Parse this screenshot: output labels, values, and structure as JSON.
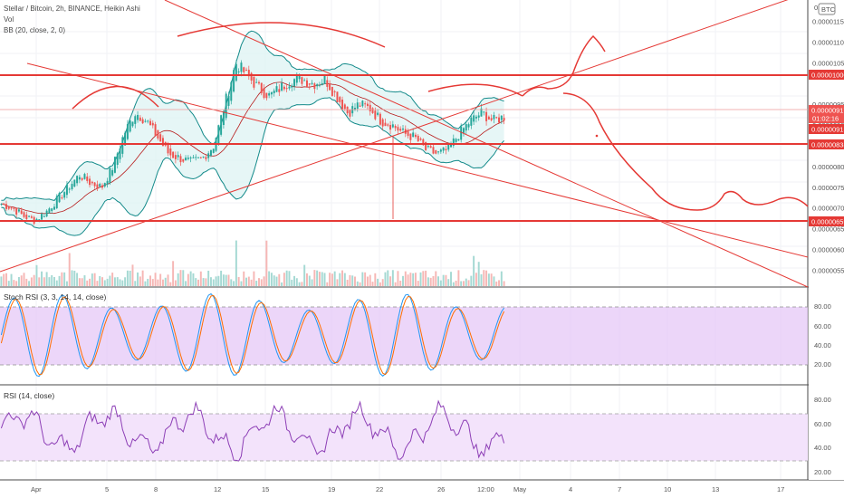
{
  "header": {
    "title": "Stellar / Bitcoin, 2h, BINANCE, Heikin Ashi",
    "vol_label": "Vol",
    "bb_label": "BB (20, close, 2, 0)"
  },
  "currency_badge": "BTC",
  "price_axis": {
    "ticks": [
      "0.00001150",
      "0.00001100",
      "0.00001050",
      "0.00000950",
      "0.00000900",
      "0.00000850",
      "0.00000800",
      "0.00000750",
      "0.00000700",
      "0.00000650",
      "0.00000600",
      "0.00000550"
    ],
    "top_partial": "0.000",
    "current_price": "0.00000917",
    "countdown": "01:02:16",
    "bb_basis": "0.00000915",
    "line_levels": [
      "0.00001000",
      "0.00000838",
      "0.00000659"
    ]
  },
  "stoch": {
    "label": "Stoch RSI (3, 3, 14, 14, close)",
    "ticks": [
      "80.00",
      "60.00",
      "40.00",
      "20.00"
    ]
  },
  "rsi": {
    "label": "RSI (14, close)",
    "ticks": [
      "80.00",
      "60.00",
      "40.00",
      "20.00"
    ]
  },
  "time_axis": [
    "Apr",
    "5",
    "8",
    "12",
    "15",
    "19",
    "22",
    "26",
    "12:00",
    "May",
    "4",
    "7",
    "10",
    "13",
    "17"
  ],
  "colors": {
    "candle_up": "#26a69a",
    "candle_down": "#ef5350",
    "drawing": "#e53935",
    "bb_line": "#138a8a",
    "bb_fill": "#e0f4f4",
    "stoch_band": "#e6c8f7",
    "rsi_band": "#f3e3fb",
    "rsi_line": "#8d3fb6"
  },
  "chart_data": {
    "type": "candlestick",
    "symbol": "Stellar / Bitcoin",
    "interval": "2h",
    "exchange": "BINANCE",
    "style": "Heikin Ashi",
    "y_range": [
      5.2e-06,
      1.18e-05
    ],
    "close_series": [
      7.1e-06,
      7e-06,
      6.8e-06,
      6.7e-06,
      6.9e-06,
      7.2e-06,
      7.5e-06,
      7.8e-06,
      7.6e-06,
      7.5e-06,
      8e-06,
      8.8e-06,
      9.3e-06,
      9.1e-06,
      8.7e-06,
      8.3e-06,
      8.2e-06,
      8.1e-06,
      8.2e-06,
      8.5e-06,
      9.5e-06,
      1.05e-05,
      1.02e-05,
      9.9e-06,
      9.7e-06,
      9.9e-06,
      1.01e-05,
      1.01e-05,
      1e-05,
      1.01e-05,
      9.7e-06,
      9.3e-06,
      9.5e-06,
      9.4e-06,
      9.1e-06,
      9e-06,
      8.8e-06,
      8.7e-06,
      8.4e-06,
      8.3e-06,
      8.4e-06,
      8.8e-06,
      9.1e-06,
      9.3e-06,
      9.1e-06,
      9.2e-06
    ],
    "horizontal_levels": [
      1e-05,
      8.38e-06,
      6.59e-06
    ],
    "last_price": 9.17e-06,
    "stoch_rsi_levels": [
      80,
      20
    ],
    "rsi_levels": [
      70,
      30
    ]
  }
}
